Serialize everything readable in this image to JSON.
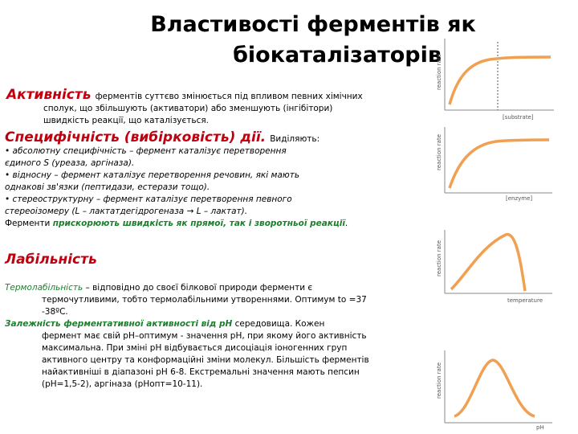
{
  "title": {
    "line1": "Властивості ферментів як",
    "line2": "біокаталізаторів"
  },
  "activity": {
    "heading": "Активність",
    "text_inline": "ферментів суттєво змінюється під впливом певних хімічних",
    "text_line2": "сполук, що збільшують (активатори) або зменшують (інгібітори)",
    "text_line3": "швидкість реакції, що каталізується."
  },
  "specificity": {
    "heading": "Специфічність (вибірковість) дії.",
    "suffix": "Виділяють:",
    "b1_l1": "• абсолютну специфічність – фермент каталізує перетворення",
    "b1_l2": "єдиного S (уреаза, аргіназа).",
    "b2_l1": "• відносну – фермент каталізує перетворення речовин, які мають",
    "b2_l2": "однакові зв'язки (пептидази, естерази тощо).",
    "b3_l1": "• стереоструктурну – фермент каталізує перетворення певного",
    "b3_l2": "стереоізомеру (L – лактатдегідрогеназа → L – лактат).",
    "accel_pre": "Ферменти",
    "accel_green": "прискорюють швидкість як прямої, так і зворотньої реакції",
    "accel_post": "."
  },
  "lability": {
    "heading": "Лабільність",
    "thermo_label": "Термолабільність",
    "thermo_l1": " – відповідно до своєї білкової природи ферменти є",
    "thermo_l2": "термочутливими, тобто термолабільними утвореннями. Оптимум to =37",
    "thermo_l3": "-38ºС.",
    "ph_label": "Залежність ферментативної активності від рН",
    "ph_l1": " середовища. Кожен",
    "ph_l2": "фермент має свій рН–оптимум - значення рН, при якому його активність",
    "ph_l3": "максимальна. При зміні рН відбувається дисоціація іоногенних груп",
    "ph_l4": "активного центру та  конформаційні зміни молекул. Більшість ферментів",
    "ph_l5": "найактивніші в діапазоні рН 6-8. Екстремальні значення мають пепсин",
    "ph_l6": "(рН=1,5-2), аргіназа (рНопт=10-11)."
  },
  "charts": {
    "ylabel": "reaction rate",
    "c1_xlabel": "[substrate]",
    "c2_xlabel": "[enzyme]",
    "c3_xlabel": "temperature",
    "c4_xlabel": "pH",
    "curve_color": "#f0a050"
  }
}
